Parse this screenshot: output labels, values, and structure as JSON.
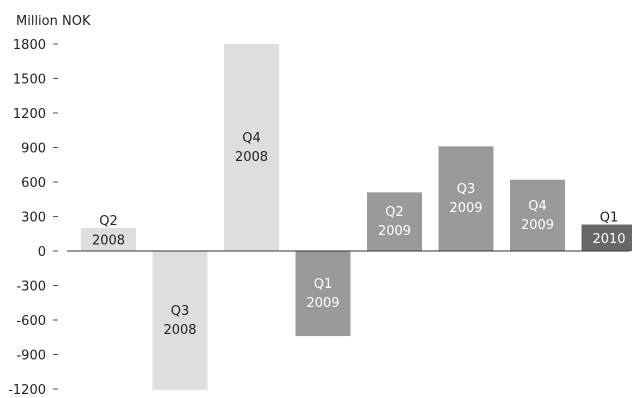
{
  "chart_data": {
    "type": "bar",
    "ylabel": "Million NOK",
    "ylim": [
      -1200,
      1800
    ],
    "yticks": [
      1800,
      1500,
      1200,
      900,
      600,
      300,
      0,
      -300,
      -600,
      -900,
      -1200
    ],
    "grid": false,
    "categories": [
      {
        "quarter": "Q2",
        "year": "2008"
      },
      {
        "quarter": "Q3",
        "year": "2008"
      },
      {
        "quarter": "Q4",
        "year": "2008"
      },
      {
        "quarter": "Q1",
        "year": "2009"
      },
      {
        "quarter": "Q2",
        "year": "2009"
      },
      {
        "quarter": "Q3",
        "year": "2009"
      },
      {
        "quarter": "Q4",
        "year": "2009"
      },
      {
        "quarter": "Q1",
        "year": "2010"
      }
    ],
    "values": [
      200,
      -1210,
      1800,
      -740,
      510,
      910,
      620,
      230
    ],
    "colors": [
      "#dedede",
      "#dedede",
      "#dedede",
      "#9a9a9a",
      "#9a9a9a",
      "#9a9a9a",
      "#9a9a9a",
      "#686868"
    ],
    "label_colors": {
      "light_bar": "#222222",
      "dark_bar": "#ffffff",
      "axis": "#222222"
    }
  }
}
